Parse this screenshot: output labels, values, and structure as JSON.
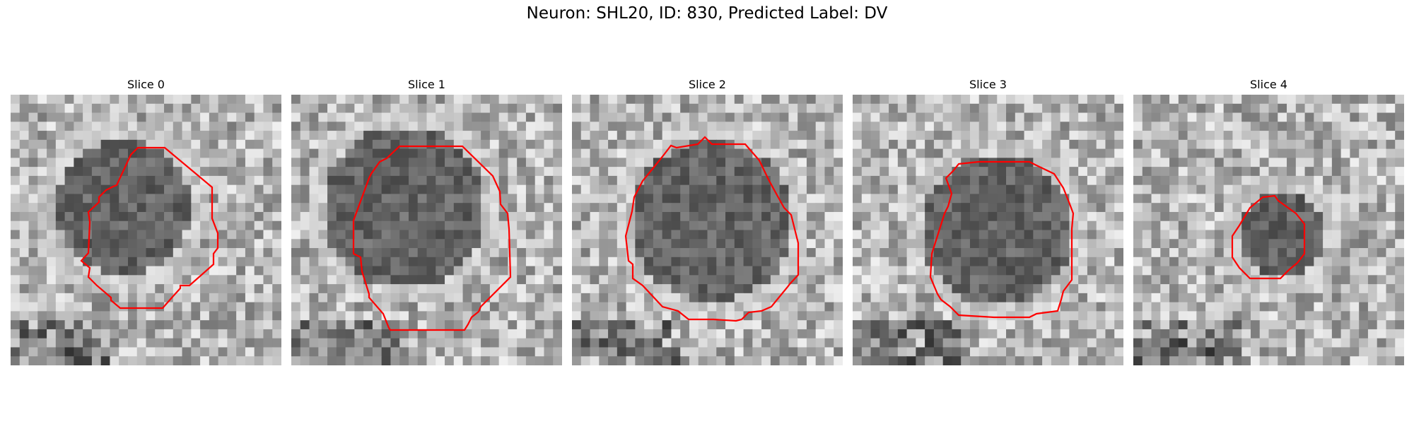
{
  "figure": {
    "title": "Neuron: SHL20, ID: 830, Predicted Label: DV"
  },
  "contour_color": "#ff0000",
  "slices": [
    {
      "title": "Slice 0"
    },
    {
      "title": "Slice 1"
    },
    {
      "title": "Slice 2"
    },
    {
      "title": "Slice 3"
    },
    {
      "title": "Slice 4"
    }
  ]
}
